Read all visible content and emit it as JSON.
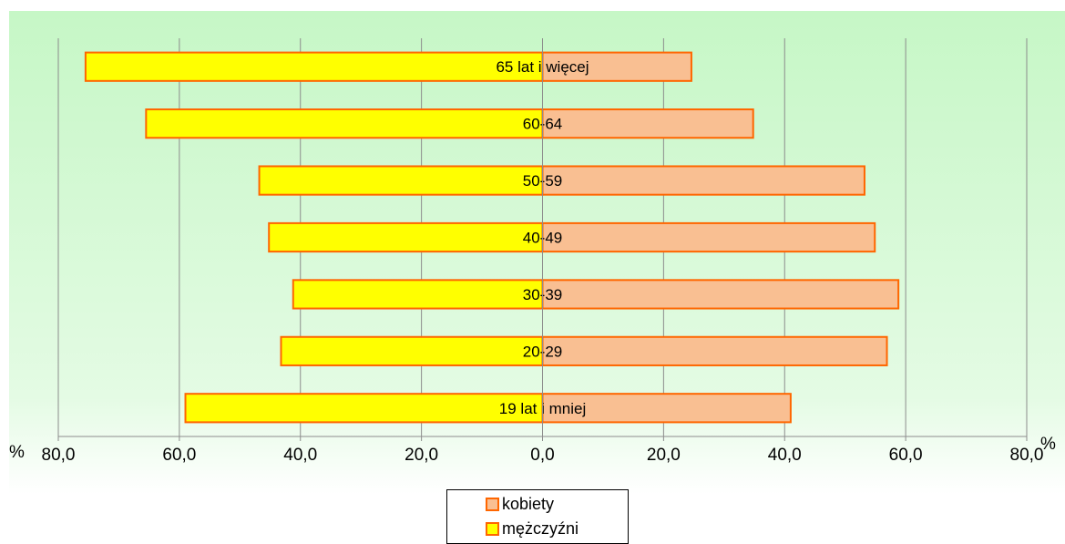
{
  "chart_data": {
    "type": "bar",
    "orientation": "horizontal-diverging",
    "categories": [
      "65 lat i więcej",
      "60-64",
      "50-59",
      "40-49",
      "30-39",
      "20-29",
      "19 lat i mniej"
    ],
    "series": [
      {
        "name": "mężczyźni",
        "values": [
          75.5,
          65.5,
          46.8,
          45.2,
          41.2,
          43.2,
          59.0
        ],
        "color": "#ffff00",
        "side": "left"
      },
      {
        "name": "kobiety",
        "values": [
          24.6,
          34.8,
          53.2,
          54.9,
          58.8,
          56.9,
          41.0
        ],
        "color": "#f9bf92",
        "side": "right"
      }
    ],
    "x_ticks": [
      "80,0",
      "60,0",
      "40,0",
      "20,0",
      "0,0",
      "20,0",
      "40,0",
      "60,0",
      "80,0"
    ],
    "xlim": [
      -80,
      80
    ],
    "unit_left": "%",
    "unit_right": "%",
    "grid": true,
    "bar_border_color": "#ff6600",
    "plot_background": "#ccffcc",
    "legend_position": "bottom"
  }
}
